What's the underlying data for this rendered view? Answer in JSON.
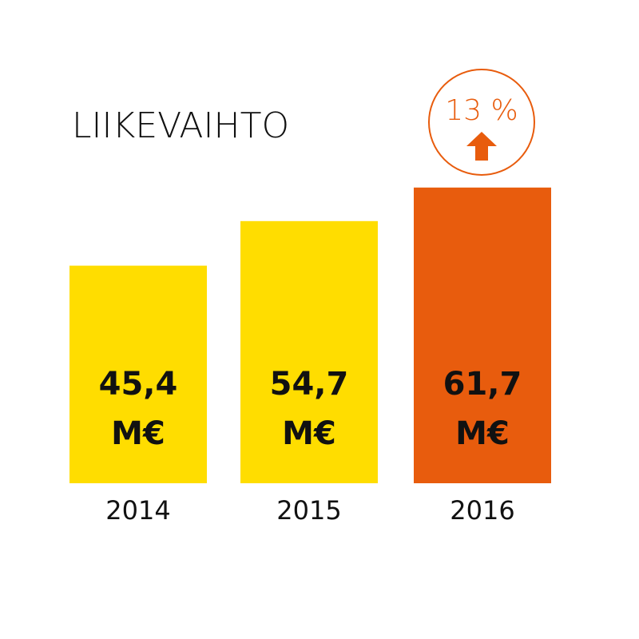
{
  "chart_data": {
    "type": "bar",
    "title": "LIIKEVAIHTO",
    "categories": [
      "2014",
      "2015",
      "2016"
    ],
    "values": [
      45.4,
      54.7,
      61.7
    ],
    "value_labels": [
      "45,4",
      "54,7",
      "61,7"
    ],
    "value_unit": "M€",
    "colors": [
      "#FFDD00",
      "#FFDD00",
      "#E85C0D"
    ],
    "annotation": "13 %",
    "annotation_color": "#E85C0D"
  }
}
